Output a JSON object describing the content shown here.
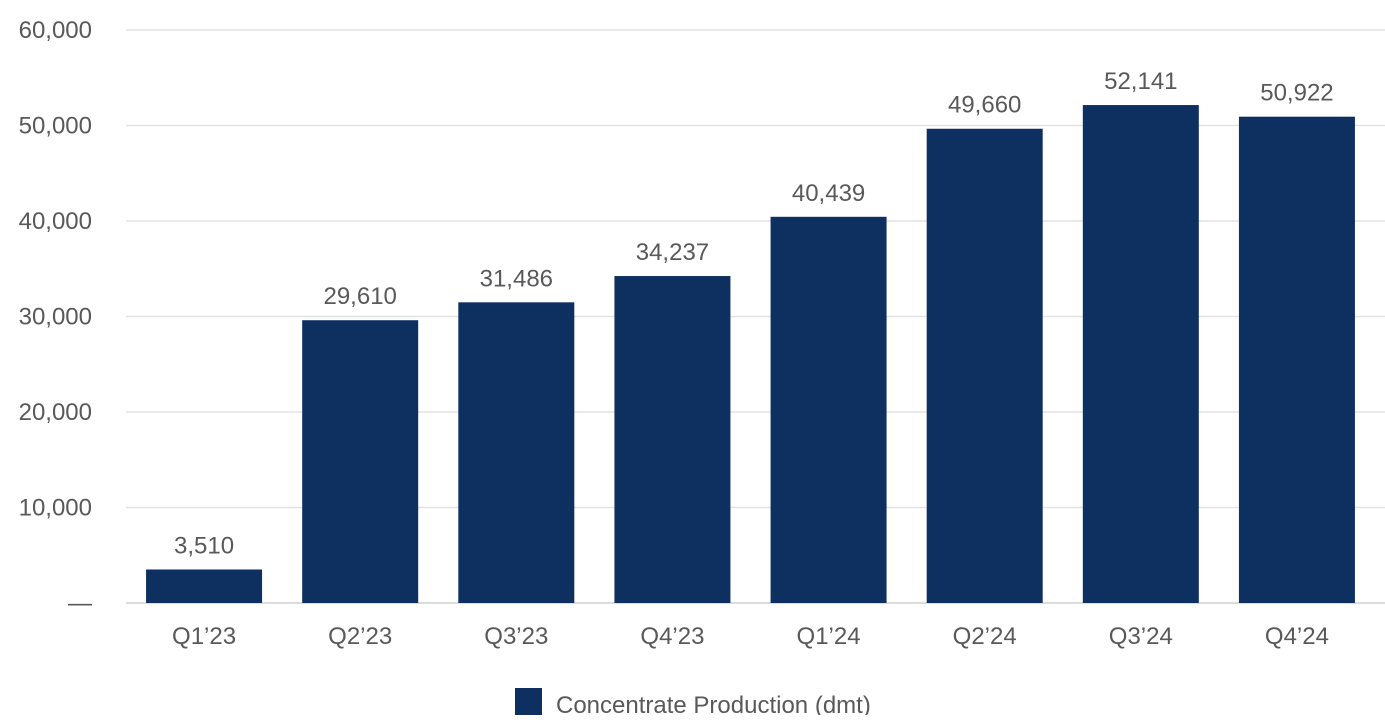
{
  "chart_data": {
    "type": "bar",
    "categories": [
      "Q1’23",
      "Q2’23",
      "Q3’23",
      "Q4’23",
      "Q1’24",
      "Q2’24",
      "Q3’24",
      "Q4’24"
    ],
    "series": [
      {
        "name": "Concentrate Production (dmt)",
        "values": [
          3510,
          29610,
          31486,
          34237,
          40439,
          49660,
          52141,
          50922
        ],
        "color": "#0d3061"
      }
    ],
    "data_labels": [
      "3,510",
      "29,610",
      "31,486",
      "34,237",
      "40,439",
      "49,660",
      "52,141",
      "50,922"
    ],
    "y_tick_labels": [
      "—",
      "10,000",
      "20,000",
      "30,000",
      "40,000",
      "50,000",
      "60,000"
    ],
    "y_ticks": [
      0,
      10000,
      20000,
      30000,
      40000,
      50000,
      60000
    ],
    "ylim": [
      0,
      60000
    ],
    "grid": true,
    "legend_position": "bottom"
  }
}
